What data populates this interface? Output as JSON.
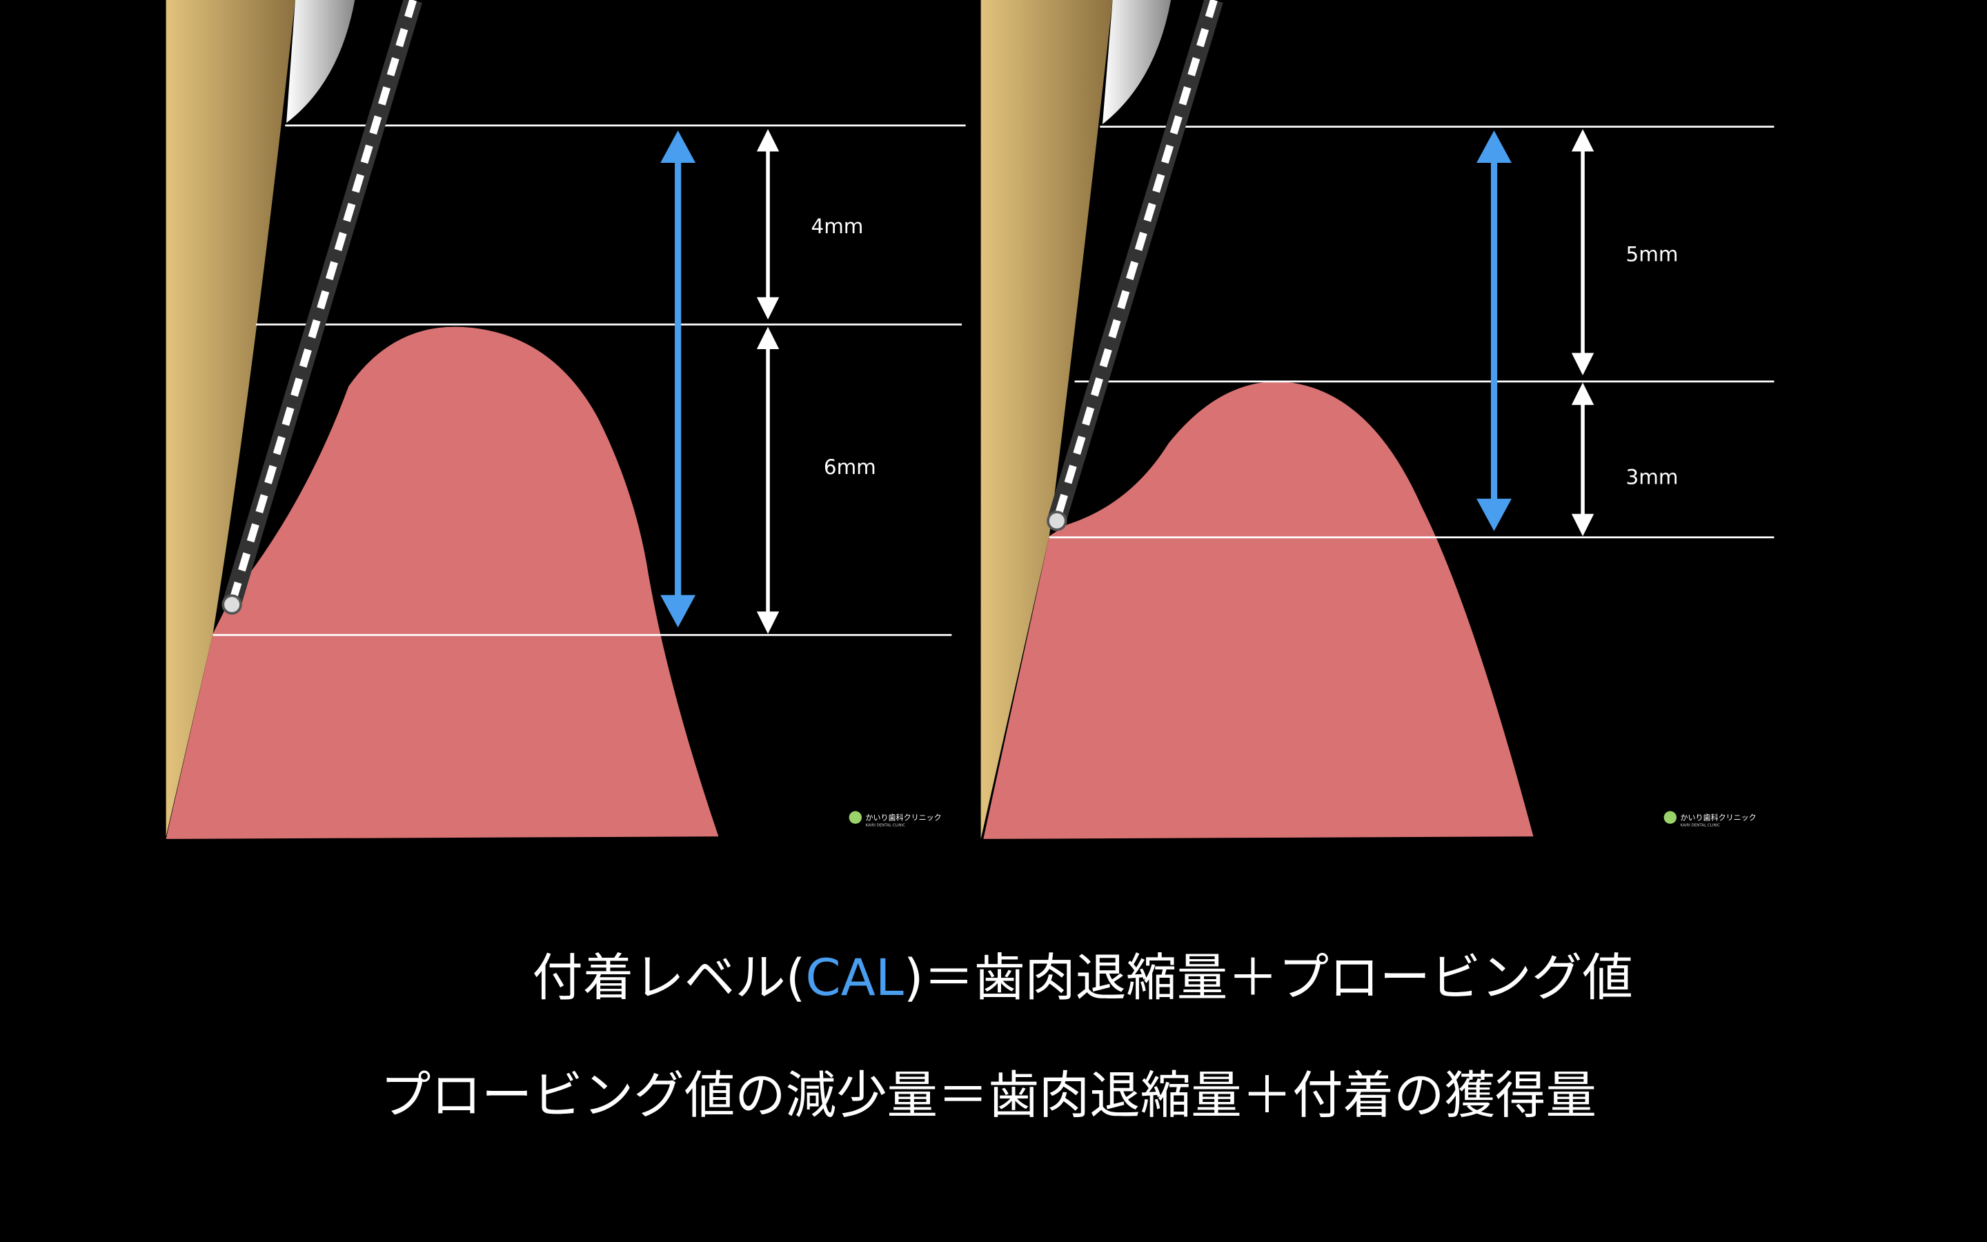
{
  "panels": [
    {
      "measurements": [
        "4mm",
        "6mm"
      ],
      "logo": {
        "name": "かいり歯科クリニック",
        "sub": "KAIRI DENTAL CLINIC"
      }
    },
    {
      "measurements": [
        "5mm",
        "3mm"
      ],
      "logo": {
        "name": "かいり歯科クリニック",
        "sub": "KAIRI DENTAL CLINIC"
      }
    }
  ],
  "equations": [
    {
      "parts": [
        "付着レベル(",
        "CAL",
        ")＝歯肉退縮量＋プロービング値"
      ]
    },
    {
      "parts": [
        "プロービング値の減少量＝歯肉退縮量＋付着の獲得量"
      ]
    }
  ]
}
